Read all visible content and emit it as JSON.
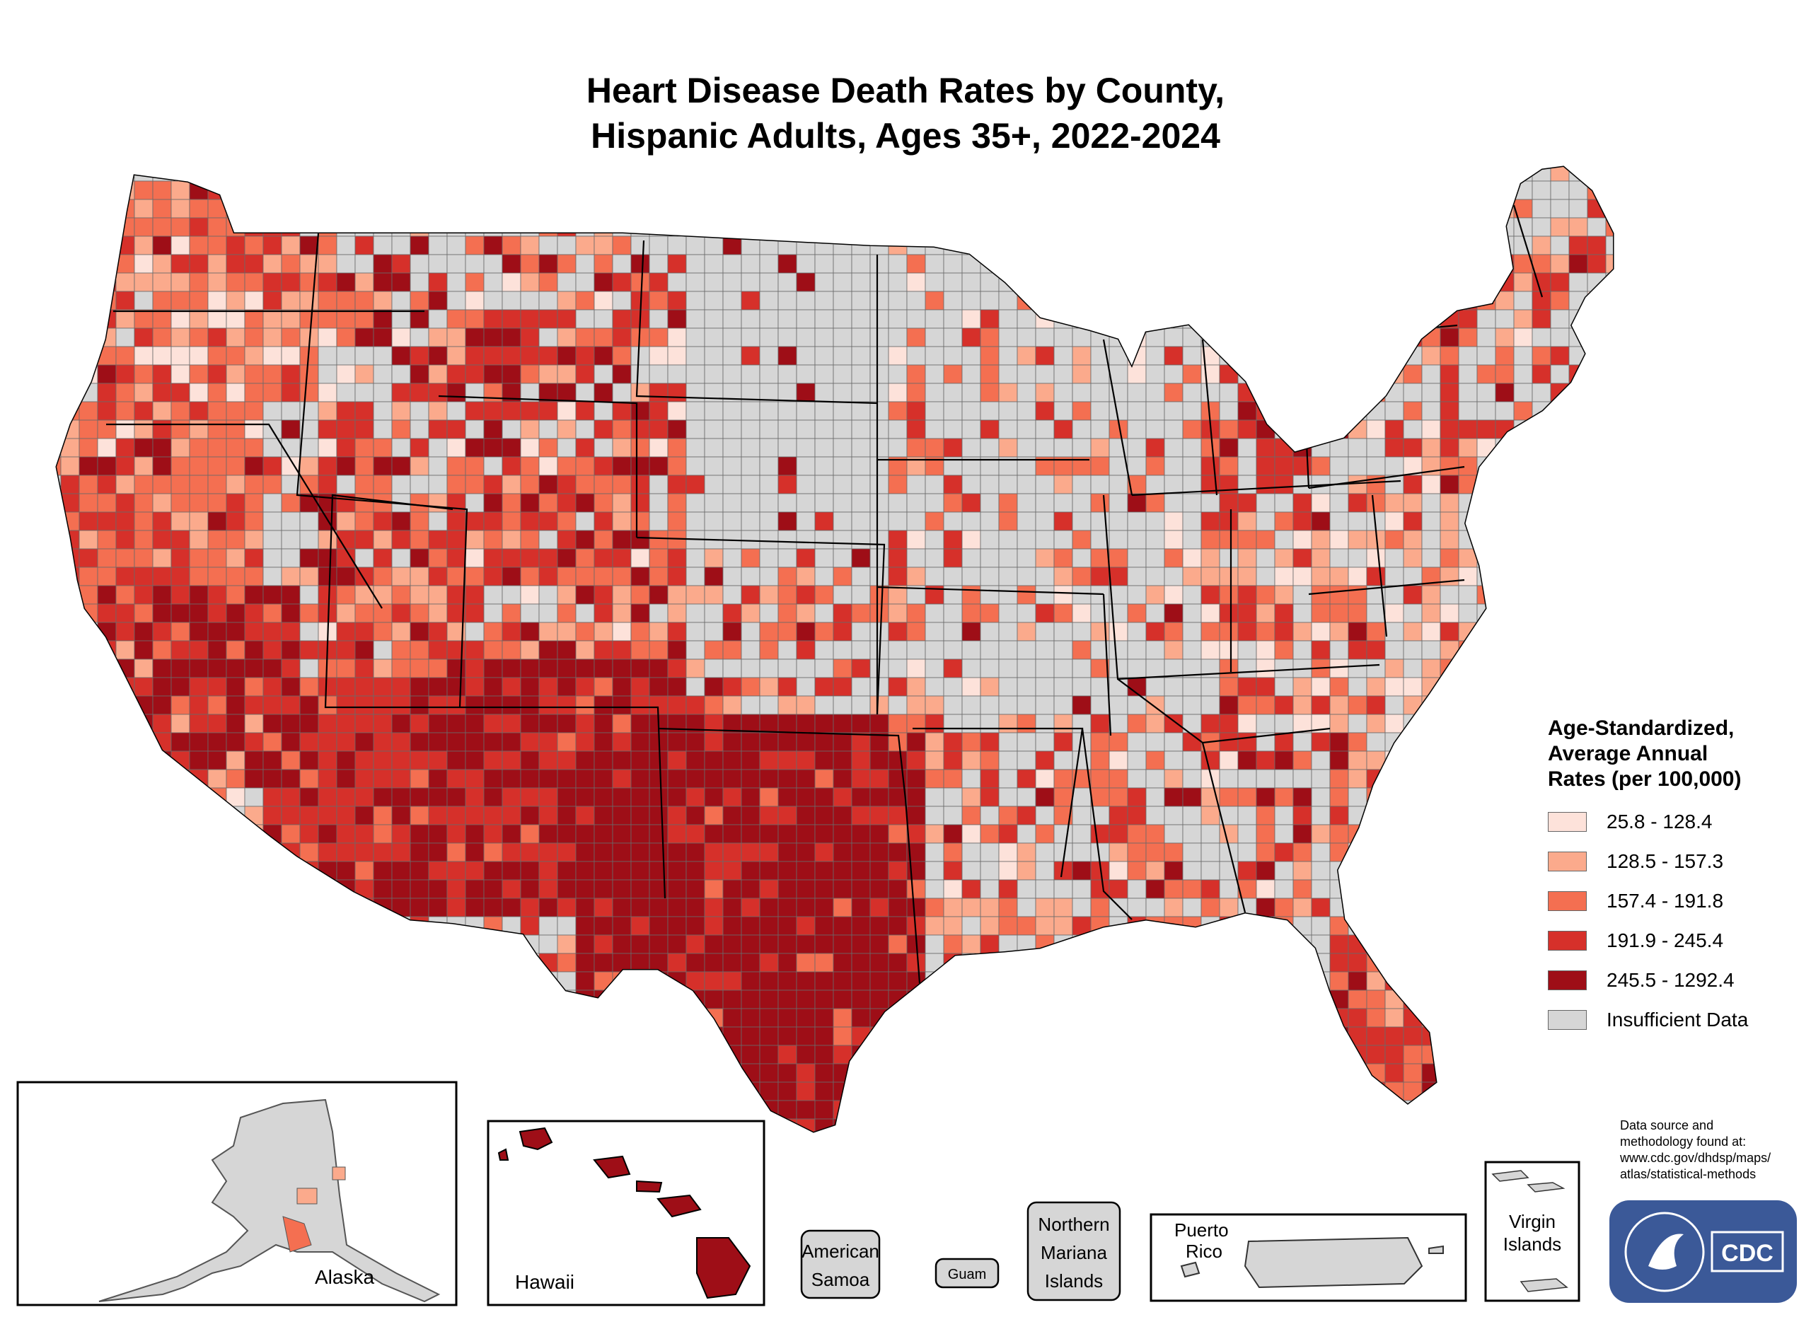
{
  "title_line1": "Heart Disease Death Rates by County,",
  "title_line2": "Hispanic Adults, Ages 35+, 2022-2024",
  "legend": {
    "title_lines": [
      "Age-Standardized,",
      "Average Annual",
      "Rates (per 100,000)"
    ],
    "items": [
      {
        "label": "25.8 - 128.4",
        "color": "#fde2da"
      },
      {
        "label": "128.5 - 157.3",
        "color": "#fbaa8c"
      },
      {
        "label": "157.4 - 191.8",
        "color": "#f46f51"
      },
      {
        "label": "191.9 - 245.4",
        "color": "#d6302a"
      },
      {
        "label": "245.5 - 1292.4",
        "color": "#9e0e17"
      },
      {
        "label": "Insufficient Data",
        "color": "#d6d6d6"
      }
    ]
  },
  "insets": {
    "alaska": "Alaska",
    "hawaii": "Hawaii",
    "american_samoa": [
      "American",
      "Samoa"
    ],
    "guam": "Guam",
    "northern_mariana": [
      "Northern",
      "Mariana",
      "Islands"
    ],
    "puerto_rico": [
      "Puerto",
      "Rico"
    ],
    "virgin_islands": [
      "Virgin",
      "Islands"
    ]
  },
  "source": [
    "Data source and",
    "methodology found at:",
    "www.cdc.gov/dhdsp/maps/",
    "atlas/statistical-methods"
  ],
  "logo": {
    "text": "CDC",
    "bg_color": "#3b5998"
  }
}
